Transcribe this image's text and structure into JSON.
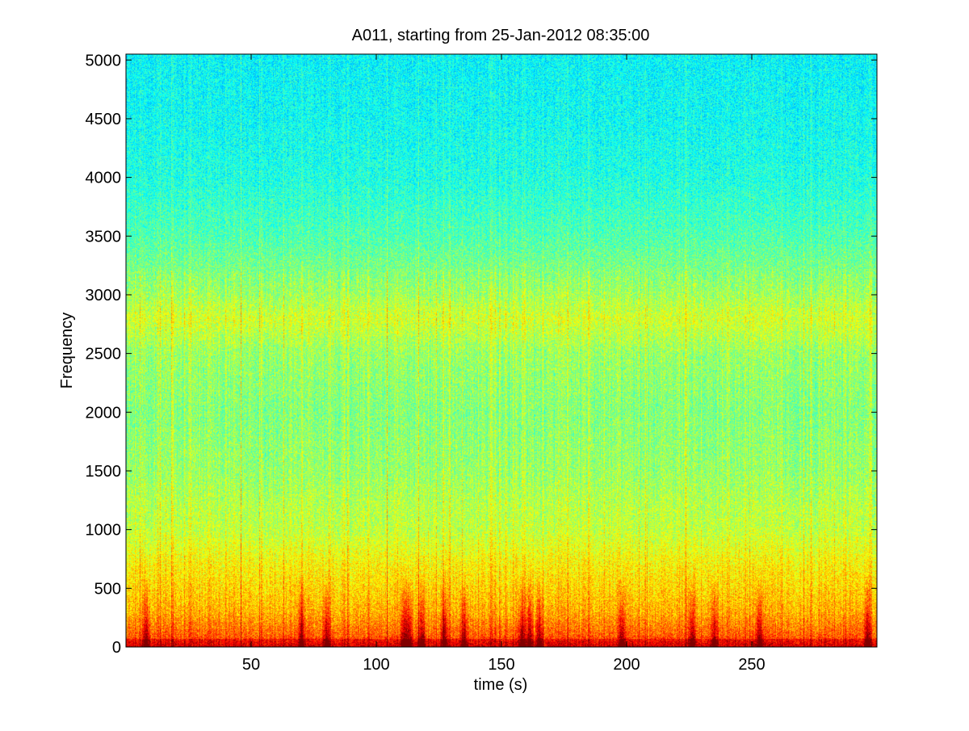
{
  "chart_data": {
    "type": "heatmap",
    "title": "A011, starting from 25-Jan-2012 08:35:00",
    "xlabel": "time (s)",
    "ylabel": "Frequency",
    "xlim": [
      0,
      300
    ],
    "ylim": [
      0,
      5050
    ],
    "x_ticks": [
      50,
      100,
      150,
      200,
      250
    ],
    "y_ticks": [
      0,
      500,
      1000,
      1500,
      2000,
      2500,
      3000,
      3500,
      4000,
      4500,
      5000
    ],
    "grid": false,
    "colormap": "jet",
    "colors": {
      "low": "#21ddd6",
      "mid": "#6cf59c",
      "high": "#ffff12",
      "peak": "#dd1a10"
    },
    "spectral_profile": [
      {
        "frequency": 0,
        "level": 0.86
      },
      {
        "frequency": 100,
        "level": 0.78
      },
      {
        "frequency": 300,
        "level": 0.7
      },
      {
        "frequency": 500,
        "level": 0.66
      },
      {
        "frequency": 700,
        "level": 0.63
      },
      {
        "frequency": 1000,
        "level": 0.56
      },
      {
        "frequency": 1200,
        "level": 0.55
      },
      {
        "frequency": 1500,
        "level": 0.52
      },
      {
        "frequency": 2000,
        "level": 0.5
      },
      {
        "frequency": 2500,
        "level": 0.52
      },
      {
        "frequency": 2800,
        "level": 0.58
      },
      {
        "frequency": 3000,
        "level": 0.53
      },
      {
        "frequency": 3500,
        "level": 0.45
      },
      {
        "frequency": 4000,
        "level": 0.4
      },
      {
        "frequency": 4500,
        "level": 0.38
      },
      {
        "frequency": 5000,
        "level": 0.37
      }
    ],
    "transient_events_s": [
      8,
      70,
      80,
      111,
      113,
      118,
      127,
      135,
      158,
      161,
      165,
      198,
      226,
      235,
      253,
      296
    ]
  }
}
